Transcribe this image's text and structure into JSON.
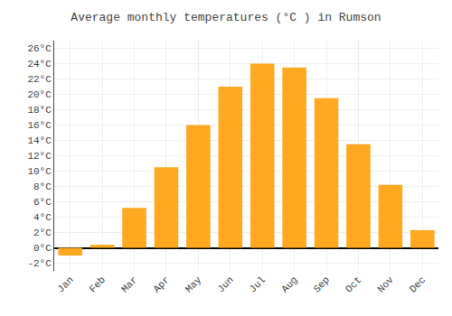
{
  "chart_data": {
    "type": "bar",
    "title": "Average monthly temperatures (°C ) in Rumson",
    "categories": [
      "Jan",
      "Feb",
      "Mar",
      "Apr",
      "May",
      "Jun",
      "Jul",
      "Aug",
      "Sep",
      "Oct",
      "Nov",
      "Dec"
    ],
    "values": [
      -1.0,
      0.4,
      5.2,
      10.5,
      16.0,
      21.0,
      24.0,
      23.5,
      19.5,
      13.5,
      8.2,
      2.3
    ],
    "color": "#FFA820",
    "ylim": [
      -3,
      27
    ],
    "yticks": [
      {
        "value": -2,
        "label": "-2°C"
      },
      {
        "value": 0,
        "label": "0°C"
      },
      {
        "value": 2,
        "label": "2°C"
      },
      {
        "value": 4,
        "label": "4°C"
      },
      {
        "value": 6,
        "label": "6°C"
      },
      {
        "value": 8,
        "label": "8°C"
      },
      {
        "value": 10,
        "label": "10°C"
      },
      {
        "value": 12,
        "label": "12°C"
      },
      {
        "value": 14,
        "label": "14°C"
      },
      {
        "value": 16,
        "label": "16°C"
      },
      {
        "value": 18,
        "label": "18°C"
      },
      {
        "value": 20,
        "label": "20°C"
      },
      {
        "value": 22,
        "label": "22°C"
      },
      {
        "value": 24,
        "label": "24°C"
      },
      {
        "value": 26,
        "label": "26°C"
      }
    ],
    "grid": true
  }
}
